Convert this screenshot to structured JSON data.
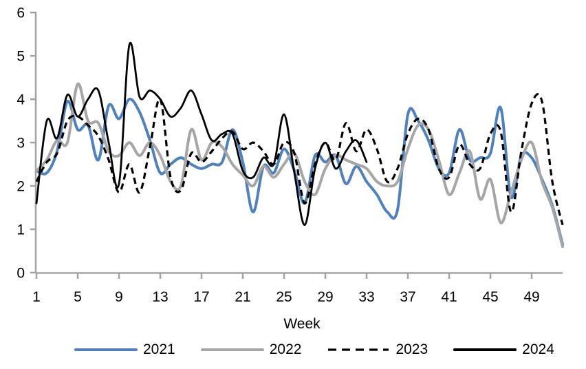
{
  "figure": {
    "background": "#ffffff"
  },
  "axes": {
    "color": "#a3a3a3",
    "x": {
      "title": "Week",
      "min": 1,
      "max": 52,
      "tick_weeks": [
        1,
        5,
        9,
        13,
        17,
        21,
        25,
        29,
        33,
        37,
        41,
        45,
        49
      ]
    },
    "y": {
      "min": 0,
      "max": 6,
      "ticks": [
        0,
        1,
        2,
        3,
        4,
        5,
        6
      ]
    }
  },
  "legend": {
    "items": [
      {
        "label": "2021",
        "color": "#4f81bd",
        "style": "solid"
      },
      {
        "label": "2022",
        "color": "#a6a6a6",
        "style": "solid"
      },
      {
        "label": "2023",
        "color": "#000000",
        "style": "dashed"
      },
      {
        "label": "2024",
        "color": "#000000",
        "style": "solid"
      }
    ]
  },
  "chart_data": {
    "type": "line",
    "title": "",
    "xlabel": "Week",
    "ylabel": "",
    "xlim": [
      1,
      52
    ],
    "ylim": [
      0,
      6
    ],
    "grid": false,
    "legend_position": "bottom",
    "x": [
      1,
      2,
      3,
      4,
      5,
      6,
      7,
      8,
      9,
      10,
      11,
      12,
      13,
      14,
      15,
      16,
      17,
      18,
      19,
      20,
      21,
      22,
      23,
      24,
      25,
      26,
      27,
      28,
      29,
      30,
      31,
      32,
      33,
      34,
      35,
      36,
      37,
      38,
      39,
      40,
      41,
      42,
      43,
      44,
      45,
      46,
      47,
      48,
      49,
      50,
      51,
      52
    ],
    "series": [
      {
        "name": "2021",
        "color": "#4f81bd",
        "style": "solid",
        "width": 4,
        "values": [
          2.35,
          2.3,
          2.8,
          3.95,
          3.3,
          3.4,
          2.6,
          3.85,
          3.55,
          4.0,
          3.7,
          3.05,
          2.3,
          2.5,
          2.65,
          2.5,
          2.4,
          2.5,
          2.55,
          3.3,
          2.55,
          1.4,
          2.45,
          2.3,
          2.85,
          2.35,
          1.6,
          2.7,
          2.55,
          2.7,
          2.05,
          2.45,
          2.1,
          1.8,
          1.4,
          1.45,
          3.65,
          3.5,
          3.05,
          2.4,
          2.3,
          3.3,
          2.6,
          2.65,
          2.75,
          3.8,
          1.75,
          2.7,
          2.65,
          2.15,
          1.55,
          0.65
        ]
      },
      {
        "name": "2022",
        "color": "#a6a6a6",
        "style": "solid",
        "width": 4,
        "values": [
          2.35,
          2.6,
          3.05,
          3.0,
          4.35,
          3.5,
          3.45,
          2.8,
          2.7,
          3.0,
          2.7,
          3.0,
          2.7,
          2.1,
          2.0,
          3.3,
          2.6,
          3.0,
          2.9,
          2.5,
          2.25,
          2.0,
          2.45,
          2.2,
          2.5,
          2.75,
          2.1,
          1.8,
          2.4,
          2.7,
          2.6,
          2.5,
          2.4,
          2.1,
          2.0,
          2.1,
          2.85,
          3.4,
          3.3,
          2.6,
          1.8,
          2.3,
          2.8,
          1.7,
          2.15,
          1.15,
          1.85,
          2.6,
          3.0,
          2.1,
          1.5,
          0.6
        ]
      },
      {
        "name": "2023",
        "color": "#000000",
        "style": "dashed",
        "width": 3.2,
        "values": [
          2.1,
          2.55,
          2.75,
          3.5,
          3.6,
          3.4,
          3.15,
          2.6,
          1.85,
          2.5,
          1.85,
          2.9,
          4.0,
          2.2,
          1.9,
          2.75,
          2.55,
          2.8,
          3.1,
          3.25,
          2.85,
          3.0,
          2.8,
          2.5,
          3.0,
          2.75,
          1.6,
          2.5,
          3.0,
          2.6,
          3.45,
          2.8,
          3.3,
          2.85,
          2.1,
          2.4,
          3.2,
          3.55,
          3.3,
          2.4,
          2.2,
          2.95,
          2.5,
          2.4,
          3.2,
          3.25,
          1.4,
          2.8,
          3.9,
          3.95,
          2.1,
          1.1
        ]
      },
      {
        "name": "2024",
        "color": "#000000",
        "style": "solid",
        "width": 2.8,
        "values": [
          1.6,
          3.5,
          3.1,
          4.1,
          3.6,
          4.0,
          4.2,
          3.0,
          2.05,
          5.25,
          4.05,
          4.2,
          4.0,
          3.6,
          3.8,
          4.2,
          3.65,
          3.05,
          3.2,
          3.2,
          2.35,
          2.2,
          2.65,
          2.5,
          3.65,
          2.3,
          1.1,
          2.4,
          3.0,
          2.4,
          2.8,
          3.05,
          2.55
        ]
      }
    ]
  }
}
